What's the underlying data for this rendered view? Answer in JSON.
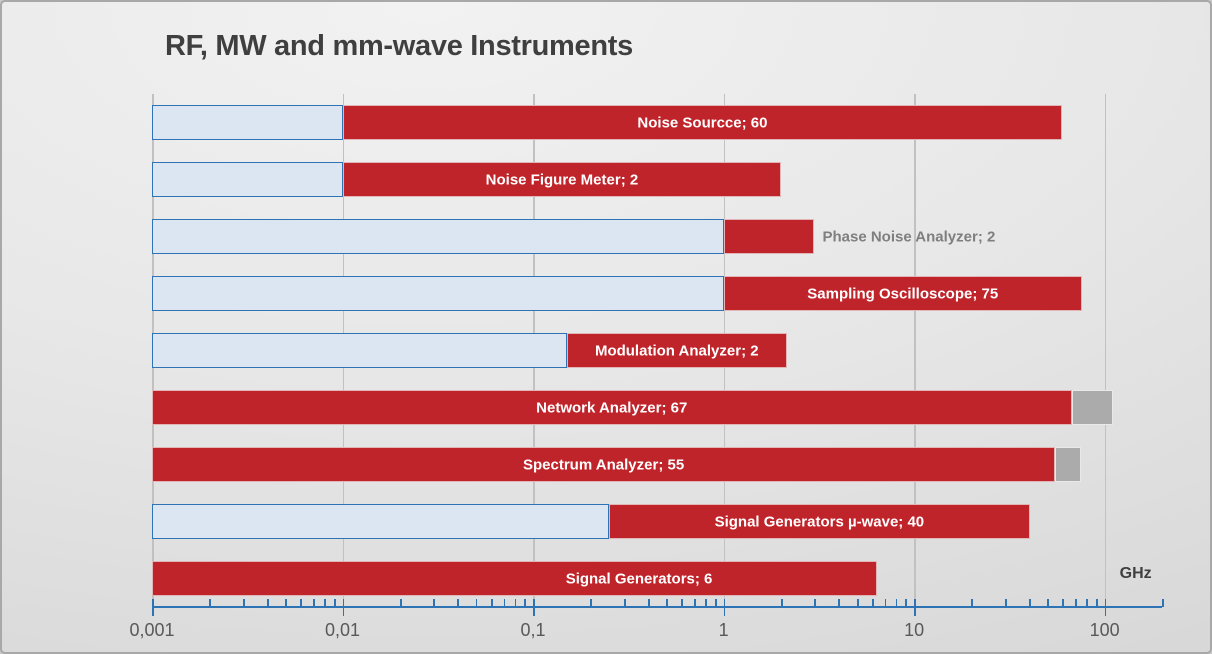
{
  "slide": {
    "frame_border_color": "#a8a8a8",
    "background_light": "#f2f2f2",
    "background_dark": "#d4d4d4"
  },
  "chart_data": {
    "type": "bar",
    "orientation": "horizontal",
    "title": "RF, MW and mm-wave Instruments",
    "title_color": "#3f3f3f",
    "grid": true,
    "legend": null,
    "x_axis": {
      "scale": "log",
      "min": 0.001,
      "max": 200,
      "unit_label": "GHz",
      "axis_color": "#2e74b5",
      "gridline_color": "#c1c1c1",
      "tick_label_color": "#595959",
      "ticks": [
        {
          "value": 0.001,
          "label": "0,001"
        },
        {
          "value": 0.01,
          "label": "0,01"
        },
        {
          "value": 0.1,
          "label": "0,1"
        },
        {
          "value": 1,
          "label": "1"
        },
        {
          "value": 10,
          "label": "10"
        },
        {
          "value": 100,
          "label": "100"
        }
      ]
    },
    "colors": {
      "start_segment_fill": "#dce6f2",
      "start_segment_border": "#2e74b5",
      "range_segment_fill": "#c0242b",
      "range_segment_border": "#e2b6b6",
      "extension_segment_fill": "#ababab",
      "inside_label": "#ffffff",
      "outside_label": "#7f7f7f"
    },
    "rows": [
      {
        "name": "Noise Sourcce",
        "value": 60,
        "label": "Noise Sourcce; 60",
        "label_position": "inside",
        "segments": [
          {
            "kind": "start",
            "from": 0.001,
            "to": 0.01
          },
          {
            "kind": "range",
            "from": 0.01,
            "to": 60
          }
        ]
      },
      {
        "name": "Noise Figure Meter",
        "value": 2,
        "label": "Noise Figure Meter; 2",
        "label_position": "inside",
        "segments": [
          {
            "kind": "start",
            "from": 0.001,
            "to": 0.01
          },
          {
            "kind": "range",
            "from": 0.01,
            "to": 2.01
          }
        ]
      },
      {
        "name": "Phase Noise Analyzer",
        "value": 2,
        "label": "Phase Noise Analyzer; 2",
        "label_position": "outside",
        "segments": [
          {
            "kind": "start",
            "from": 0.001,
            "to": 1
          },
          {
            "kind": "range",
            "from": 1,
            "to": 3
          }
        ]
      },
      {
        "name": "Sampling Oscilloscope",
        "value": 75,
        "label": "Sampling Oscilloscope; 75",
        "label_position": "inside",
        "segments": [
          {
            "kind": "start",
            "from": 0.001,
            "to": 1
          },
          {
            "kind": "range",
            "from": 1,
            "to": 76
          }
        ]
      },
      {
        "name": "Modulation Analyzer",
        "value": 2,
        "label": "Modulation Analyzer; 2",
        "label_position": "inside",
        "segments": [
          {
            "kind": "start",
            "from": 0.001,
            "to": 0.15
          },
          {
            "kind": "range",
            "from": 0.15,
            "to": 2.15
          }
        ]
      },
      {
        "name": "Network Analyzer",
        "value": 67,
        "label": "Network Analyzer; 67",
        "label_position": "inside",
        "segments": [
          {
            "kind": "range",
            "from": 0.001,
            "to": 67
          },
          {
            "kind": "extension",
            "from": 67,
            "to": 110
          }
        ]
      },
      {
        "name": "Spectrum Analyzer",
        "value": 55,
        "label": "Spectrum Analyzer; 55",
        "label_position": "inside",
        "segments": [
          {
            "kind": "range",
            "from": 0.001,
            "to": 55
          },
          {
            "kind": "extension",
            "from": 55,
            "to": 75
          }
        ]
      },
      {
        "name": "Signal Generators µ-wave",
        "value": 40,
        "label": "Signal Generators µ-wave; 40",
        "label_position": "inside",
        "segments": [
          {
            "kind": "start",
            "from": 0.001,
            "to": 0.25
          },
          {
            "kind": "range",
            "from": 0.25,
            "to": 40.5
          }
        ]
      },
      {
        "name": "Signal Generators",
        "value": 6,
        "label": "Signal Generators; 6",
        "label_position": "inside",
        "label_at": 0.36,
        "segments": [
          {
            "kind": "range",
            "from": 0.001,
            "to": 6.4
          }
        ]
      }
    ]
  }
}
